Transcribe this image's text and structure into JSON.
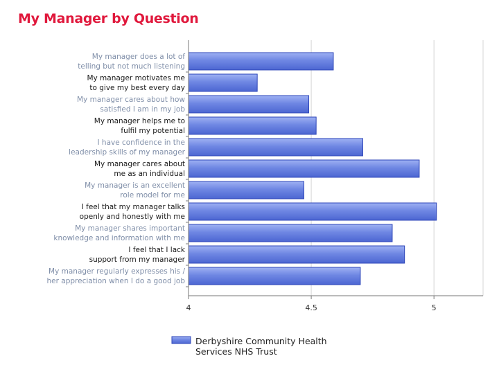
{
  "chart_data": {
    "type": "bar",
    "orientation": "horizontal",
    "title": "My Manager by Question",
    "categories": [
      [
        "My manager does a lot of",
        "telling but not much listening"
      ],
      [
        "My manager motivates me",
        "to give my best every day"
      ],
      [
        "My manager cares about how",
        "satisfied I am in my job"
      ],
      [
        "My manager helps me to",
        "fulfil my potential"
      ],
      [
        "I have confidence in the",
        "leadership skills of my manager"
      ],
      [
        "My manager cares about",
        "me as an individual"
      ],
      [
        "My manager is an excellent",
        "role model for me"
      ],
      [
        "I feel that my manager talks",
        "openly and honestly with me"
      ],
      [
        "My manager shares important",
        "knowledge and information with me"
      ],
      [
        "I feel that I lack",
        "support from my manager"
      ],
      [
        "My manager regularly expresses his /",
        "her appreciation when I do a good job"
      ]
    ],
    "label_emphasis": [
      false,
      true,
      false,
      true,
      false,
      true,
      false,
      true,
      false,
      true,
      false
    ],
    "series": [
      {
        "name": "Derbyshire Community Health Services NHS Trust",
        "legend_lines": [
          "Derbyshire Community Health",
          "Services NHS Trust"
        ],
        "values": [
          4.59,
          4.28,
          4.49,
          4.52,
          4.71,
          4.94,
          4.47,
          5.01,
          4.83,
          4.88,
          4.7
        ]
      }
    ],
    "xlim": [
      4,
      5.2
    ],
    "ticks": [
      4,
      4.5,
      5
    ],
    "tick_labels": [
      "4",
      "4.5",
      "5"
    ],
    "xlabel": "",
    "ylabel": "",
    "grid": true,
    "legend_position": "bottom",
    "colors": {
      "title": "#e0183c",
      "bar_fill": "#6f87e3",
      "bar_stroke": "#2d45b8",
      "label_light": "#7f8ea8",
      "label_dark": "#1a1a1a",
      "grid": "#d4d4d4",
      "axis": "#777777"
    }
  }
}
